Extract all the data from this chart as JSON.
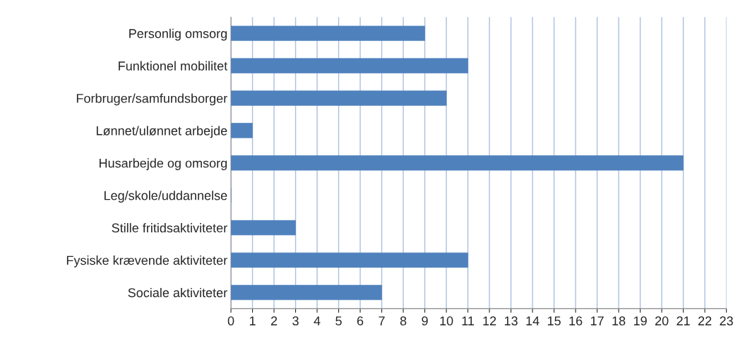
{
  "chart_data": {
    "type": "bar",
    "orientation": "horizontal",
    "categories": [
      "Personlig omsorg",
      "Funktionel mobilitet",
      "Forbruger/samfundsborger",
      "Lønnet/ulønnet arbejde",
      "Husarbejde og omsorg",
      "Leg/skole/uddannelse",
      "Stille fritidsaktiviteter",
      "Fysiske krævende aktiviteter",
      "Sociale aktiviteter"
    ],
    "values": [
      9,
      11,
      10,
      1,
      21,
      0,
      3,
      11,
      7
    ],
    "color": "#4f81bd",
    "xlim": [
      0,
      23
    ],
    "xticks": [
      0,
      1,
      2,
      3,
      4,
      5,
      6,
      7,
      8,
      9,
      10,
      11,
      12,
      13,
      14,
      15,
      16,
      17,
      18,
      19,
      20,
      21,
      22,
      23
    ],
    "grid": "x",
    "legend": false
  }
}
